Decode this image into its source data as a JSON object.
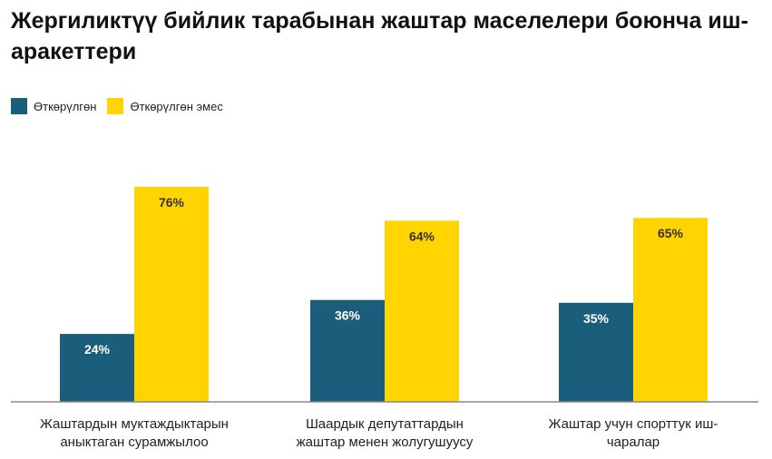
{
  "title": "Жергиликтүү бийлик тарабынан жаштар маселелери боюнча иш-аракеттери",
  "colors": {
    "series_1": "#1b5e7b",
    "series_2": "#ffd400",
    "label_on_dark": "#ffffff",
    "label_on_light": "#333333",
    "axis": "#888888"
  },
  "chart_data": {
    "type": "bar",
    "title": "Жергиликтүү бийлик тарабынан жаштар маселелери боюнча иш-аракеттери",
    "xlabel": "",
    "ylabel": "",
    "ylim": [
      0,
      100
    ],
    "grid": false,
    "legend_position": "top-left",
    "categories": [
      [
        "Жаштардын муктаждыктарын",
        "аныктаган сурамжылоо"
      ],
      [
        "Шаардык депутаттардын",
        "жаштар менен жолугушуусу"
      ],
      [
        "Жаштар учун спорттук иш-",
        "чаралар"
      ]
    ],
    "series": [
      {
        "name": "Өткөрүлгөн",
        "values": [
          24,
          36,
          35
        ],
        "labels": [
          "24%",
          "36%",
          "35%"
        ]
      },
      {
        "name": "Өткөрүлгөн эмес",
        "values": [
          76,
          64,
          65
        ],
        "labels": [
          "76%",
          "64%",
          "65%"
        ]
      }
    ]
  }
}
